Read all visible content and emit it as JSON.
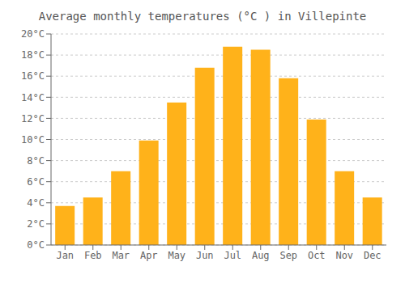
{
  "chart_data": {
    "type": "bar",
    "title": "Average monthly temperatures (°C ) in Villepinte",
    "categories": [
      "Jan",
      "Feb",
      "Mar",
      "Apr",
      "May",
      "Jun",
      "Jul",
      "Aug",
      "Sep",
      "Oct",
      "Nov",
      "Dec"
    ],
    "values": [
      3.7,
      4.5,
      7.0,
      9.9,
      13.5,
      16.8,
      18.8,
      18.5,
      15.8,
      11.9,
      7.0,
      4.5
    ],
    "color": "#FFB21A",
    "ylim": [
      0,
      20
    ],
    "yticks": [
      {
        "value": 0,
        "label": "0°C"
      },
      {
        "value": 2,
        "label": "2°C"
      },
      {
        "value": 4,
        "label": "4°C"
      },
      {
        "value": 6,
        "label": "6°C"
      },
      {
        "value": 8,
        "label": "8°C"
      },
      {
        "value": 10,
        "label": "10°C"
      },
      {
        "value": 12,
        "label": "12°C"
      },
      {
        "value": 14,
        "label": "14°C"
      },
      {
        "value": 16,
        "label": "16°C"
      },
      {
        "value": 18,
        "label": "18°C"
      },
      {
        "value": 20,
        "label": "20°C"
      }
    ],
    "grid": true
  }
}
